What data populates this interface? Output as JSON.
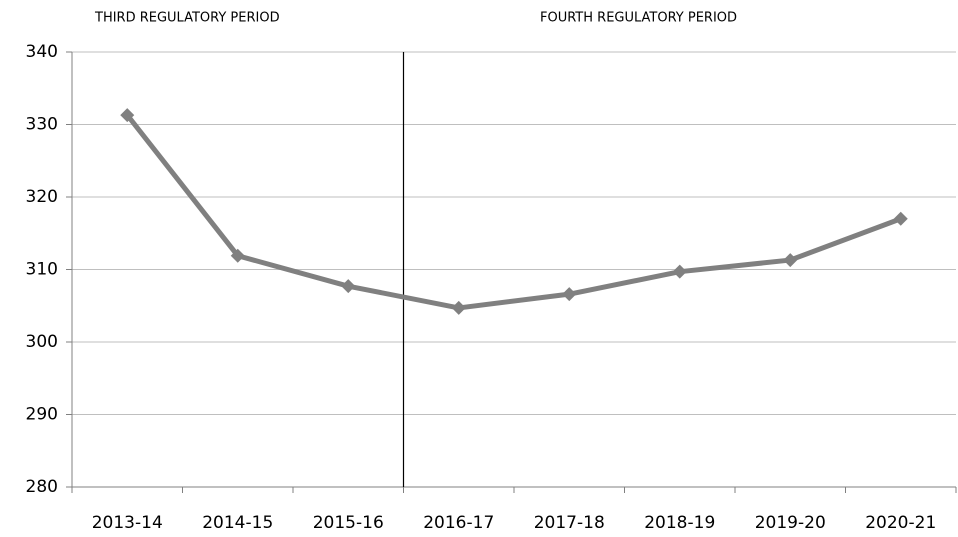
{
  "chart_data": {
    "type": "line",
    "annotations": [
      "THIRD REGULATORY PERIOD",
      "FOURTH REGULATORY PERIOD"
    ],
    "categories": [
      "2013-14",
      "2014-15",
      "2015-16",
      "2016-17",
      "2017-18",
      "2018-19",
      "2019-20",
      "2020-21"
    ],
    "series": [
      {
        "name": null,
        "color": "#808080",
        "values": [
          331.3,
          311.9,
          307.7,
          304.7,
          306.6,
          309.7,
          311.3,
          317.0
        ]
      }
    ],
    "ylim": [
      280,
      340
    ],
    "yticks": [
      280,
      290,
      300,
      310,
      320,
      330,
      340
    ],
    "grid": true
  }
}
